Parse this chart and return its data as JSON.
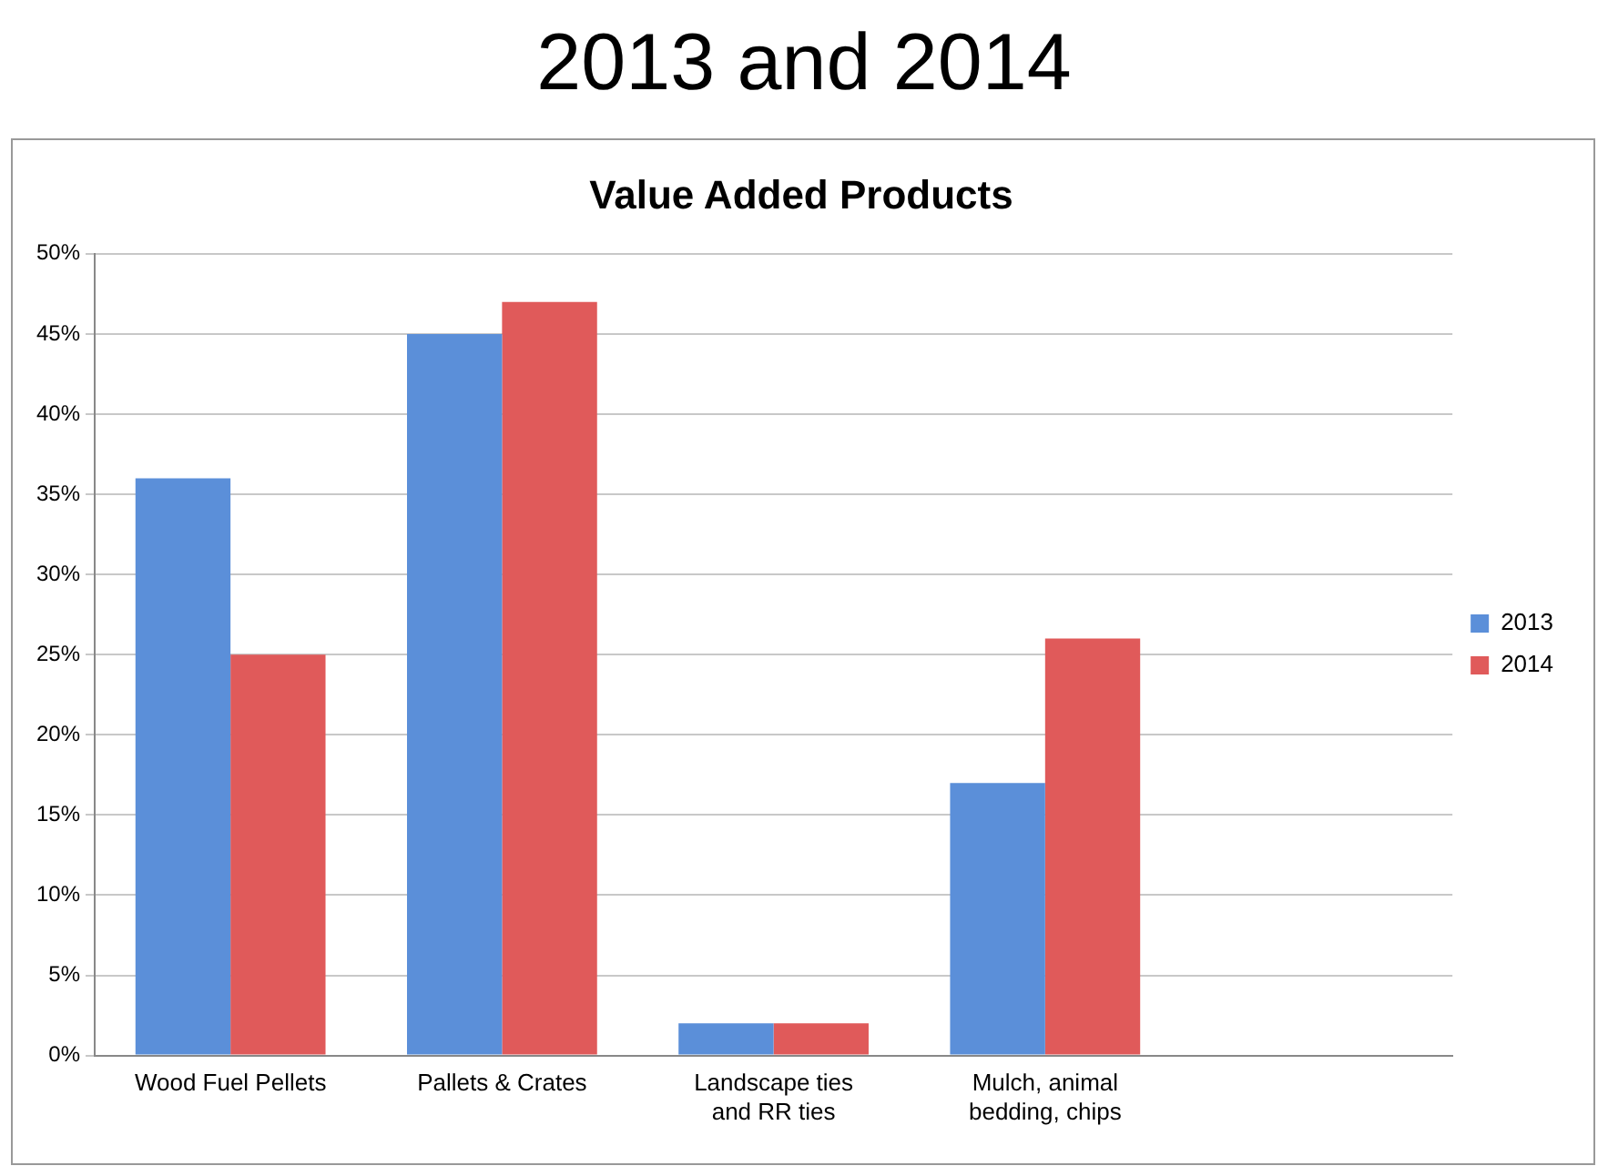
{
  "chart_data": {
    "type": "bar",
    "title": "2013 and 2014",
    "subtitle": "Value Added Products",
    "categories": [
      "Wood Fuel Pellets",
      "Pallets & Crates",
      "Landscape ties\nand RR ties",
      "Mulch, animal\nbedding, chips",
      null
    ],
    "series": [
      {
        "name": "2013",
        "color": "#5b8fd9",
        "values": [
          36,
          45,
          2,
          17,
          null
        ]
      },
      {
        "name": "2014",
        "color": "#e05a5a",
        "values": [
          25,
          47,
          2,
          26,
          null
        ]
      }
    ],
    "ylim": [
      0,
      50
    ],
    "yticks": [
      {
        "value": 0,
        "label": "0%"
      },
      {
        "value": 5,
        "label": "5%"
      },
      {
        "value": 10,
        "label": "10%"
      },
      {
        "value": 15,
        "label": "15%"
      },
      {
        "value": 20,
        "label": "20%"
      },
      {
        "value": 25,
        "label": "25%"
      },
      {
        "value": 30,
        "label": "30%"
      },
      {
        "value": 35,
        "label": "35%"
      },
      {
        "value": 40,
        "label": "40%"
      },
      {
        "value": 45,
        "label": "45%"
      },
      {
        "value": 50,
        "label": "50%"
      }
    ],
    "grid": "y",
    "legend": "right"
  }
}
